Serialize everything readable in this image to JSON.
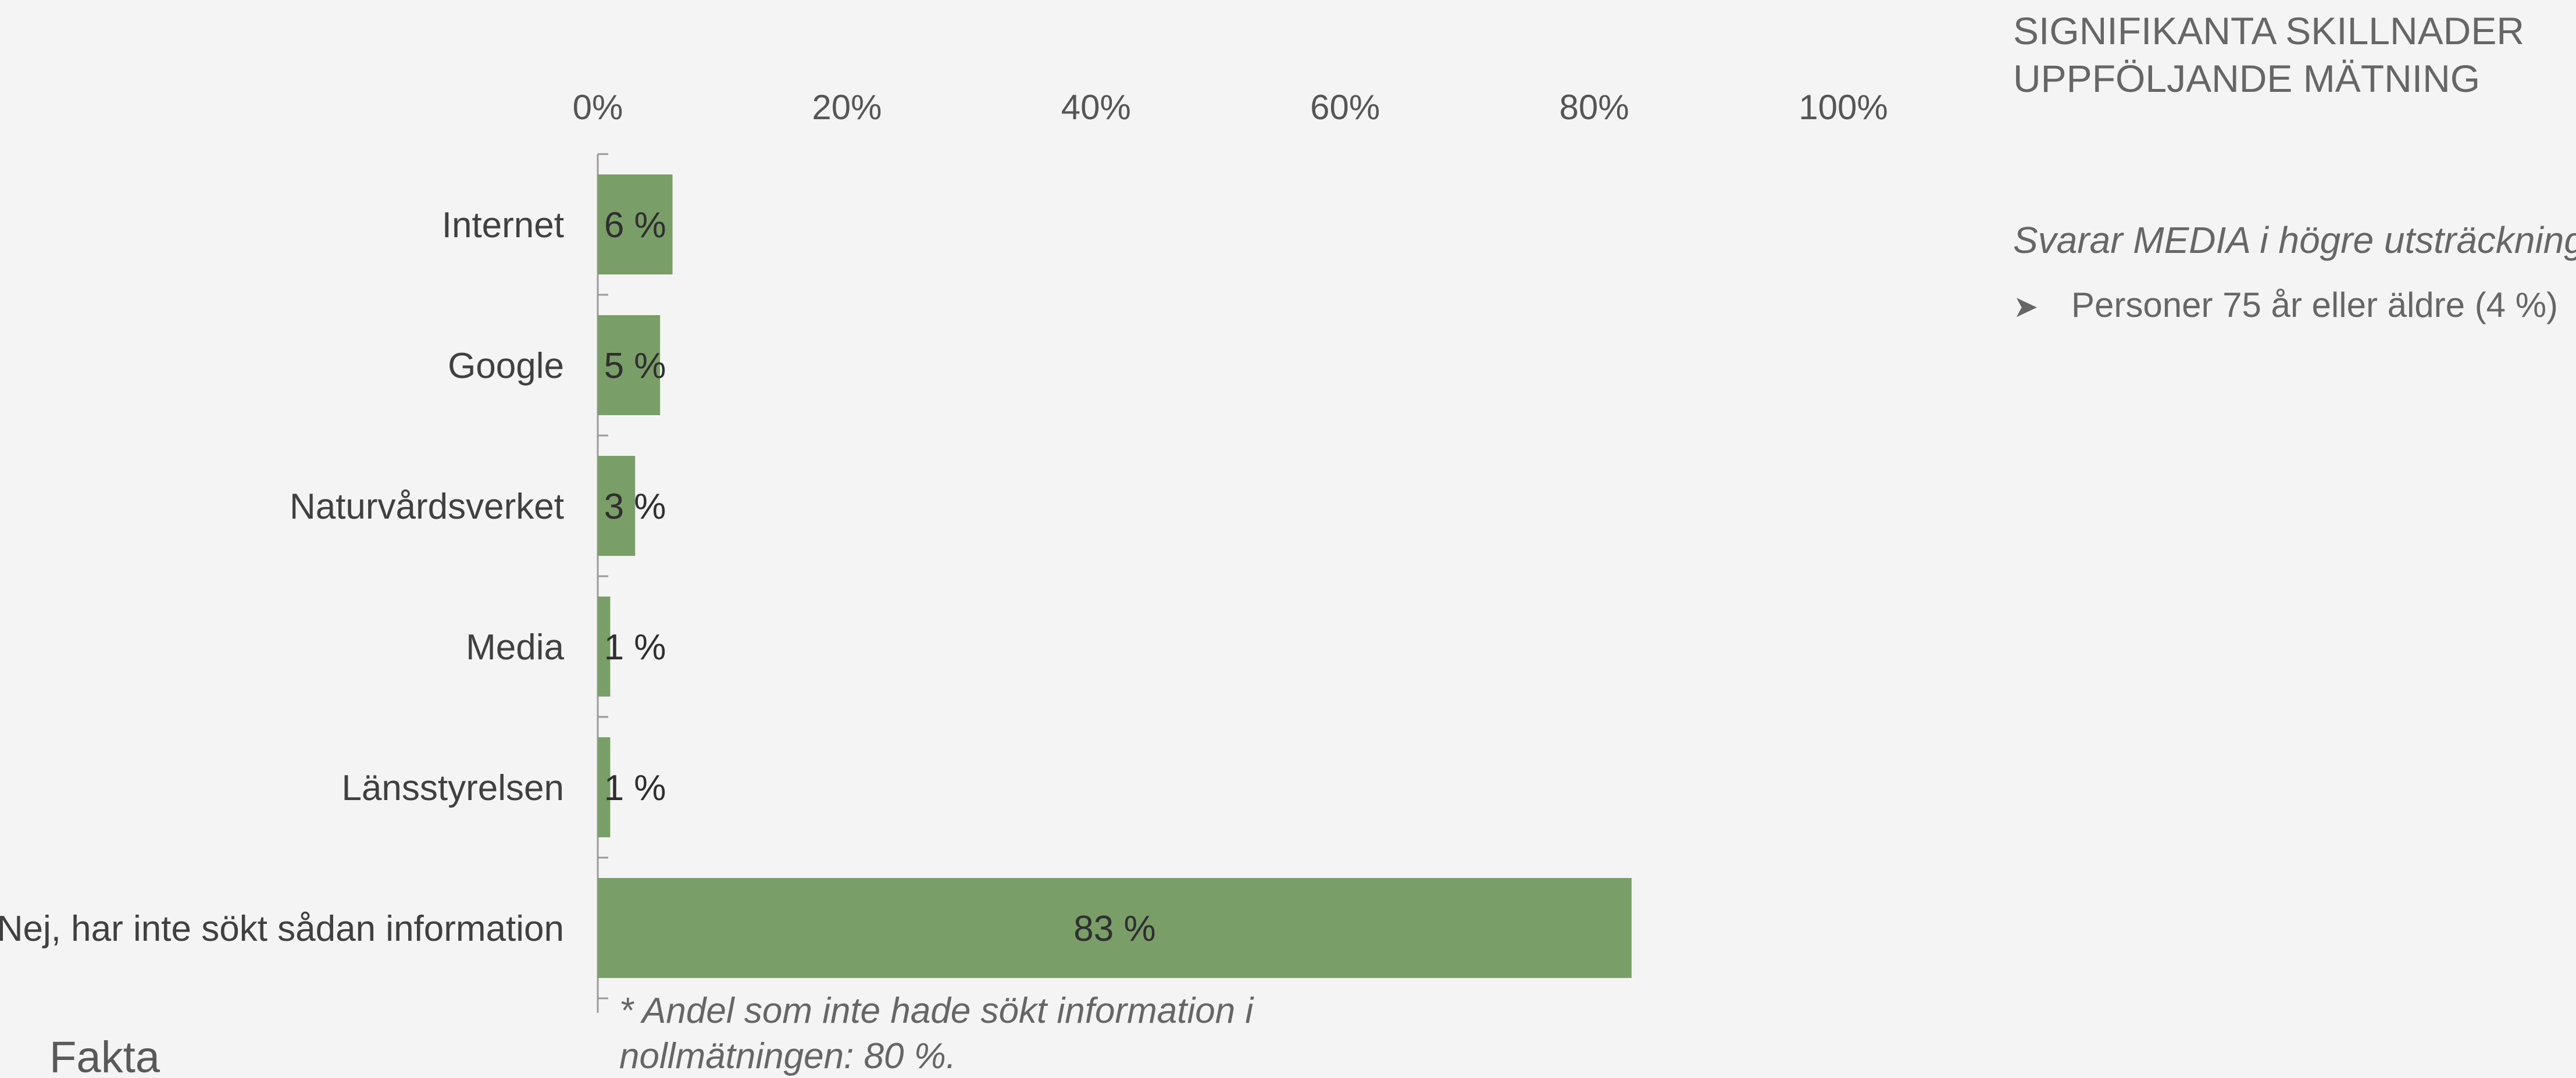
{
  "chart_data": {
    "type": "bar",
    "orientation": "horizontal",
    "categories": [
      "Internet",
      "Google",
      "Naturvårdsverket",
      "Media",
      "Länsstyrelsen",
      "Nej, har inte sökt sådan information"
    ],
    "values": [
      6,
      5,
      3,
      1,
      1,
      83
    ],
    "data_labels": [
      "6 %",
      "5 %",
      "3 %",
      "1 %",
      "1 %",
      "83 %"
    ],
    "xlim": [
      0,
      100
    ],
    "x_ticks": [
      "0%",
      "20%",
      "40%",
      "60%",
      "80%",
      "100%"
    ],
    "axis_position": "top",
    "grid": false,
    "bar_color": "#7a9e68"
  },
  "footnote": "* Andel som inte hade sökt information i nollmätningen: 80 %.",
  "fakta_label": "Fakta",
  "side_panel": {
    "title_line1": "SIGNIFIKANTA SKILLNADER",
    "title_line2": "UPPFÖLJANDE MÄTNING",
    "subtitle": "Svarar MEDIA i högre utsträckning:",
    "items": [
      "Personer 75 år eller äldre (4 %)"
    ],
    "bullet_icon": "arrowhead-bullet-icon"
  }
}
